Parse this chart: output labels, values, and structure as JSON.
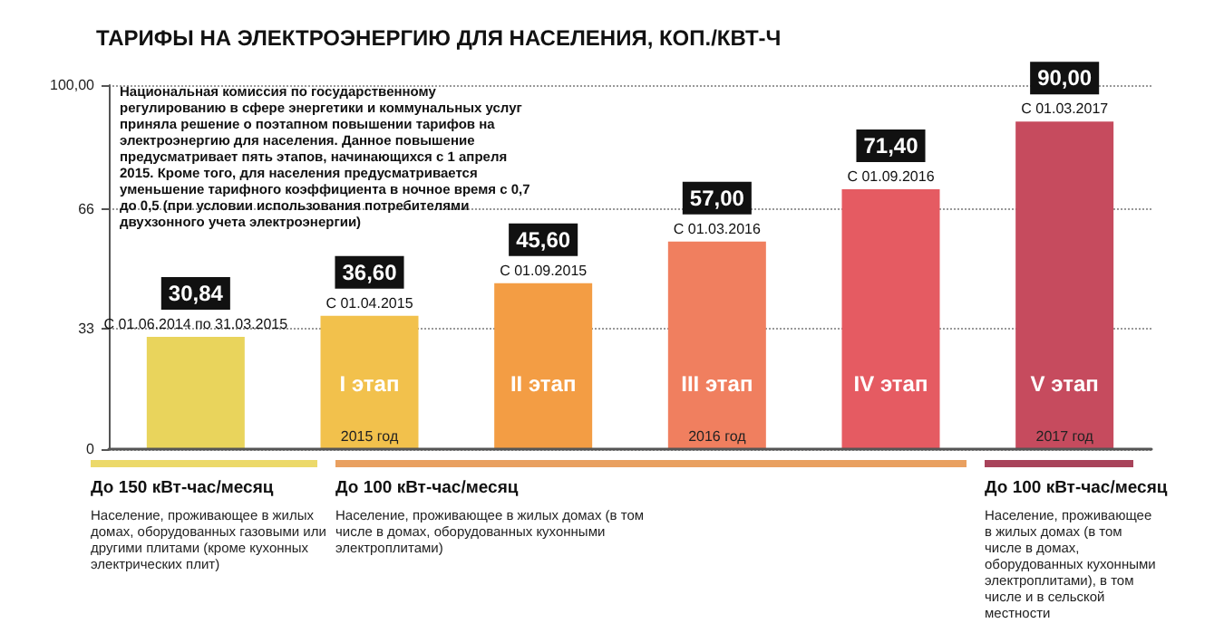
{
  "chart_data": {
    "type": "bar",
    "title": "ТАРИФЫ НА ЭЛЕКТРОЭНЕРГИЮ ДЛЯ НАСЕЛЕНИЯ, КОП./КВТ-Ч",
    "categories": [
      null,
      "I этап",
      "II этап",
      "III этап",
      "IV этап",
      "V этап"
    ],
    "values": [
      30.84,
      36.6,
      45.6,
      57,
      71.4,
      90
    ],
    "value_labels": [
      "30,84",
      "36,60",
      "45,60",
      "57,00",
      "71,40",
      "90,00"
    ],
    "colors": [
      "#e9d45c",
      "#f2c14c",
      "#f39d44",
      "#f07f5f",
      "#e55b62",
      "#c64b5e"
    ],
    "ylim": [
      0,
      100
    ],
    "yticks": [
      0,
      33,
      66,
      {
        "value": 100,
        "label": "100,00"
      }
    ],
    "grid": "y",
    "annotations": [
      {
        "text": "С 01.06.2014 по 31.03.2015",
        "y": 30.84
      },
      {
        "text": "С 01.04.2015",
        "x": "I этап",
        "y": 36.6
      },
      {
        "text": "С 01.09.2015",
        "x": "II этап",
        "y": 45.6
      },
      {
        "text": "С 01.03.2016",
        "x": "III этап",
        "y": 57
      },
      {
        "text": "С 01.09.2016",
        "x": "IV этап",
        "y": 71.4
      },
      {
        "text": "С 01.03.2017",
        "x": "V этап",
        "y": 90
      },
      "2015 год",
      "2016 год",
      "2017 год",
      "Национальная комиссия по государственному регулированию в сфере энергетики и коммунальных услуг приняла решение о поэтапном повышении тарифов на электроэнергию для населения. Данное повышение предусматривает пять этапов, начинающихся с 1 апреля 2015. Кроме того, для населения предусматривается уменьшение тарифного коэффициента в ночное время с 0,7 до 0,5 (при условии использования потребителями двухзонного учета электроэнергии)",
      "До 150 кВт-час/месяц",
      "Население, проживающее в жилых домах, оборудованных газовыми или другими плитами (кроме кухонных электрических плит)",
      "До 100 кВт-час/месяц",
      "Население, проживающее в жилых домах (в том числе в домах, оборудованных кухонными электроплитами)",
      "До 100 кВт-час/месяц",
      "Население, проживающее в жилых домах (в том числе в домах, оборудованных кухонными электроплитами), в том числе и в сельской местности"
    ]
  }
}
